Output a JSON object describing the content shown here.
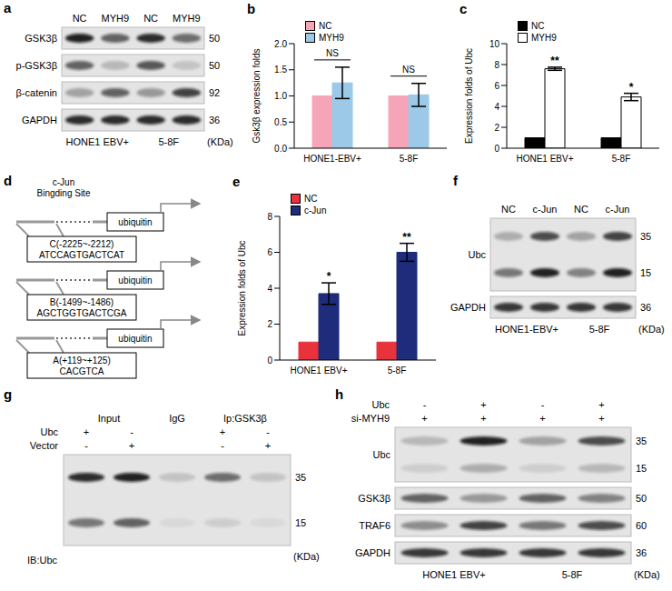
{
  "chart_data": [
    {
      "type": "bar",
      "title": "b",
      "ylabel": "Gsk3β expression folds",
      "categories": [
        "HONE1-EBV+",
        "5-8F"
      ],
      "series": [
        {
          "name": "NC",
          "color": "#f6a5b8",
          "values": [
            1,
            1
          ]
        },
        {
          "name": "MYH9",
          "color": "#9cc9e8",
          "values": [
            1.25,
            1.02
          ],
          "errors": [
            0.3,
            0.22
          ]
        }
      ],
      "ylim": [
        0,
        2
      ],
      "yticks": [
        {
          "value": 0,
          "label": "0.0"
        },
        {
          "value": 0.5,
          "label": "0.5"
        },
        {
          "value": 1,
          "label": "1.0"
        },
        {
          "value": 1.5,
          "label": "1.5"
        },
        {
          "value": 2,
          "label": "2.0"
        }
      ],
      "annotations": [
        "NS",
        "NS"
      ],
      "legend": "top"
    },
    {
      "type": "bar",
      "title": "c",
      "ylabel": "Expression folds of Ubc",
      "categories": [
        "HONE1 EBV+",
        "5-8F"
      ],
      "series": [
        {
          "name": "NC",
          "color": "#000000",
          "values": [
            1,
            1
          ]
        },
        {
          "name": "MYH9",
          "color": "#ffffff",
          "values": [
            7.6,
            4.9
          ],
          "errors": [
            0.15,
            0.35
          ]
        }
      ],
      "ylim": [
        0,
        10
      ],
      "yticks": [
        0,
        2,
        4,
        6,
        8,
        10
      ],
      "annotations": [
        "**",
        "*"
      ],
      "legend": "top"
    },
    {
      "type": "bar",
      "title": "e",
      "ylabel": "Expression folds of Ubc",
      "categories": [
        "HONE1 EBV+",
        "5-8F"
      ],
      "series": [
        {
          "name": "NC",
          "color": "#e8323c",
          "values": [
            1,
            1
          ]
        },
        {
          "name": "c-Jun",
          "color": "#1f2c7c",
          "values": [
            3.7,
            6.0
          ],
          "errors": [
            0.6,
            0.5
          ]
        }
      ],
      "ylim": [
        0,
        8
      ],
      "yticks": [
        0,
        2,
        4,
        6,
        8
      ],
      "annotations": [
        "*",
        "**"
      ],
      "legend": "top"
    }
  ],
  "blots": {
    "a": {
      "title": "a",
      "lanes": [
        "NC",
        "MYH9",
        "NC",
        "MYH9"
      ],
      "rows": [
        {
          "name": "GSK3β",
          "bands": [
            {
              "kda": 50,
              "intensity": [
                0.9,
                0.6,
                0.85,
                0.55
              ]
            }
          ]
        },
        {
          "name": "p-GSK3β",
          "bands": [
            {
              "kda": 50,
              "intensity": [
                0.6,
                0.2,
                0.65,
                0.15
              ]
            }
          ]
        },
        {
          "name": "β-catenin",
          "bands": [
            {
              "kda": 92,
              "intensity": [
                0.3,
                0.6,
                0.35,
                0.75
              ]
            }
          ]
        },
        {
          "name": "GAPDH",
          "bands": [
            {
              "kda": 36,
              "intensity": [
                0.85,
                0.85,
                0.85,
                0.85
              ]
            }
          ]
        }
      ],
      "groups": [
        "HONE1 EBV+",
        "5-8F"
      ],
      "unit": "(KDa)"
    },
    "f": {
      "title": "f",
      "lanes": [
        "NC",
        "c-Jun",
        "NC",
        "c-Jun"
      ],
      "rows": [
        {
          "name": "Ubc",
          "bands": [
            {
              "kda": 35,
              "intensity": [
                0.25,
                0.7,
                0.3,
                0.75
              ]
            },
            {
              "kda": 15,
              "intensity": [
                0.5,
                0.9,
                0.45,
                0.9
              ]
            }
          ]
        },
        {
          "name": "GAPDH",
          "bands": [
            {
              "kda": 36,
              "intensity": [
                0.8,
                0.8,
                0.8,
                0.8
              ]
            }
          ]
        }
      ],
      "groups": [
        "HONE1-EBV+",
        "5-8F"
      ],
      "unit": "(KDa)"
    },
    "g": {
      "title": "g",
      "headers": [
        {
          "text": "Input",
          "span": 2
        },
        {
          "text": "IgG",
          "span": 1
        },
        {
          "text": "Ip:GSK3β",
          "span": 2
        }
      ],
      "conditions": [
        {
          "name": "Ubc",
          "signs": [
            "+",
            "-",
            null,
            "+",
            "-"
          ]
        },
        {
          "name": "Vector",
          "signs": [
            "-",
            "+",
            null,
            "-",
            "+"
          ]
        }
      ],
      "rows": [
        {
          "bands": [
            {
              "kda": 35,
              "intensity": [
                0.85,
                0.9,
                0.15,
                0.55,
                0.15
              ]
            },
            {
              "kda": 15,
              "intensity": [
                0.5,
                0.6,
                0.05,
                0.1,
                0.05
              ]
            }
          ]
        }
      ],
      "ib_label": "IB:Ubc",
      "unit": "(KDa)"
    },
    "h": {
      "title": "h",
      "conditions": [
        {
          "name": "Ubc",
          "signs": [
            "-",
            "+",
            "-",
            "+"
          ]
        },
        {
          "name": "si-MYH9",
          "signs": [
            "+",
            "+",
            "+",
            "+"
          ]
        }
      ],
      "rows": [
        {
          "name": "Ubc",
          "bands": [
            {
              "kda": 35,
              "intensity": [
                0.2,
                0.9,
                0.3,
                0.7
              ]
            },
            {
              "kda": 15,
              "intensity": [
                0.1,
                0.25,
                0.1,
                0.2
              ]
            }
          ]
        },
        {
          "name": "GSK3β",
          "bands": [
            {
              "kda": 50,
              "intensity": [
                0.6,
                0.35,
                0.6,
                0.45
              ]
            }
          ]
        },
        {
          "name": "TRAF6",
          "bands": [
            {
              "kda": 60,
              "intensity": [
                0.4,
                0.75,
                0.5,
                0.7
              ]
            }
          ]
        },
        {
          "name": "GAPDH",
          "bands": [
            {
              "kda": 36,
              "intensity": [
                0.8,
                0.8,
                0.8,
                0.8
              ]
            }
          ]
        }
      ],
      "groups": [
        "HONE1 EBV+",
        "5-8F"
      ],
      "unit": "(KDa)"
    }
  },
  "diagram": {
    "title": "d",
    "site_label": [
      "c-Jun",
      "Bingding Site"
    ],
    "gene": "ubiquitin",
    "sites": [
      {
        "name": "C(-2225~-2212)",
        "sequence": "ATCCAGTGACTCAT"
      },
      {
        "name": "B(-1499~-1486)",
        "sequence": "AGCTGGTGACTCGA"
      },
      {
        "name": "A(+119~+125)",
        "sequence": "CACGTCA"
      }
    ]
  }
}
